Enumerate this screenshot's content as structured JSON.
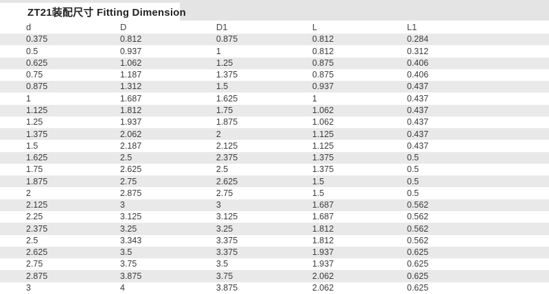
{
  "page": {
    "title": "ZT21装配尺寸 Fitting Dimension"
  },
  "colors": {
    "tab_bar_bg": "#e4e4e4",
    "tab_bg": "#ffffff",
    "stripe_bg": "#e9e9e9",
    "title_text": "#222222",
    "body_text": "#3a3a3a"
  },
  "table": {
    "columns": [
      "d",
      "D",
      "D1",
      "L",
      "L1"
    ],
    "rows": [
      [
        "0.375",
        "0.812",
        "0.875",
        "0.812",
        "0.284"
      ],
      [
        "0.5",
        "0.937",
        "1",
        "0.812",
        "0.312"
      ],
      [
        "0.625",
        "1.062",
        "1.25",
        "0.875",
        "0.406"
      ],
      [
        "0.75",
        "1.187",
        "1.375",
        "0.875",
        "0.406"
      ],
      [
        "0.875",
        "1.312",
        "1.5",
        "0.937",
        "0.437"
      ],
      [
        "1",
        "1.687",
        "1.625",
        "1",
        "0.437"
      ],
      [
        "1.125",
        "1.812",
        "1.75",
        "1.062",
        "0.437"
      ],
      [
        "1.25",
        "1.937",
        "1.875",
        "1.062",
        "0.437"
      ],
      [
        "1.375",
        "2.062",
        "2",
        "1.125",
        "0.437"
      ],
      [
        "1.5",
        "2.187",
        "2.125",
        "1.125",
        "0.437"
      ],
      [
        "1.625",
        "2.5",
        "2.375",
        "1.375",
        "0.5"
      ],
      [
        "1.75",
        "2.625",
        "2.5",
        "1.375",
        "0.5"
      ],
      [
        "1.875",
        "2.75",
        "2.625",
        "1.5",
        "0.5"
      ],
      [
        "2",
        "2.875",
        "2.75",
        "1.5",
        "0.5"
      ],
      [
        "2.125",
        "3",
        "3",
        "1.687",
        "0.562"
      ],
      [
        "2.25",
        "3.125",
        "3.125",
        "1.687",
        "0.562"
      ],
      [
        "2.375",
        "3.25",
        "3.25",
        "1.812",
        "0.562"
      ],
      [
        "2.5",
        "3.343",
        "3.375",
        "1.812",
        "0.562"
      ],
      [
        "2.625",
        "3.5",
        "3.375",
        "1.937",
        "0.625"
      ],
      [
        "2.75",
        "3.75",
        "3.5",
        "1.937",
        "0.625"
      ],
      [
        "2.875",
        "3.875",
        "3.75",
        "2.062",
        "0.625"
      ],
      [
        "3",
        "4",
        "3.875",
        "2.062",
        "0.625"
      ]
    ]
  }
}
